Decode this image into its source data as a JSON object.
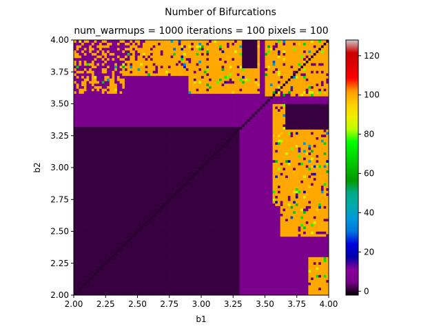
{
  "figure": {
    "suptitle": "Number of Bifurcations"
  },
  "chart_data": {
    "type": "heatmap",
    "title": "num_warmups = 1000 iterations = 100 pixels = 100",
    "xlabel": "b1",
    "ylabel": "b2",
    "xlim": [
      2.0,
      4.0
    ],
    "ylim": [
      2.0,
      4.0
    ],
    "x_ticks": [
      "2.00",
      "2.25",
      "2.50",
      "2.75",
      "3.00",
      "3.25",
      "3.50",
      "3.75",
      "4.00"
    ],
    "y_ticks": [
      "2.00",
      "2.25",
      "2.50",
      "2.75",
      "3.00",
      "3.25",
      "3.50",
      "3.75",
      "4.00"
    ],
    "grid_resolution": 100,
    "grid": false,
    "colormap": "nipy_spectral",
    "colorbar": {
      "range": [
        -2,
        128
      ],
      "ticks": [
        "0",
        "20",
        "40",
        "60",
        "80",
        "100",
        "120"
      ]
    },
    "regions": [
      {
        "label": "near-zero bifurcations (dark purple)",
        "value": 1,
        "color": "#2a0034"
      },
      {
        "label": "low bifurcations (purple)",
        "value": 6,
        "color": "#6b00a0"
      },
      {
        "label": "chaotic (orange)",
        "value": 100,
        "color": "#ffa800"
      }
    ]
  }
}
